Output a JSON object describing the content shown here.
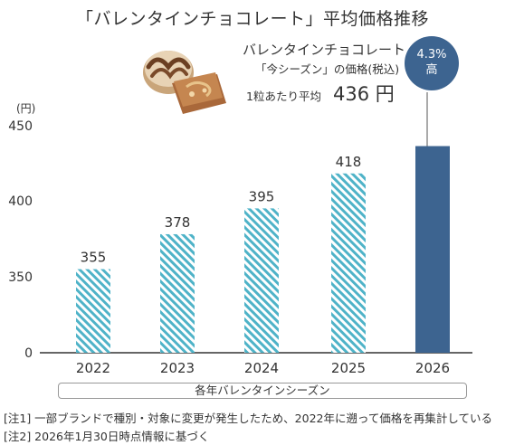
{
  "title": "「バレンタインチョコレート」平均価格推移",
  "callout": {
    "line1": "バレンタインチョコレート",
    "line2": "「今シーズン」の価格(税込)",
    "avg_label": "1粒あたり平均",
    "avg_value": "436 円"
  },
  "badge": {
    "line1": "4.3%",
    "line2": "高"
  },
  "season_label": "各年バレンタインシーズン",
  "notes": [
    "[注1]  一部ブランドで種別・対象に変更が発生したため、2022年に遡って価格を再集計している",
    "[注2]  2026年1月30日時点情報に基づく"
  ],
  "colors": {
    "hatch": "#4fb3c8",
    "solid": "#3d6490",
    "axis": "#333333",
    "grid": "#cccccc"
  },
  "icons": [
    "chocolate-icon"
  ],
  "chart_data": {
    "type": "bar",
    "ylabel": "(円)",
    "categories": [
      "2022",
      "2023",
      "2024",
      "2025",
      "2026"
    ],
    "values": [
      355,
      378,
      395,
      418,
      436
    ],
    "data_labels": [
      "355",
      "378",
      "395",
      "418",
      ""
    ],
    "y_ticks": [
      0,
      350,
      400,
      450
    ],
    "y_axis_break": true,
    "grid": false,
    "legend": "none"
  }
}
